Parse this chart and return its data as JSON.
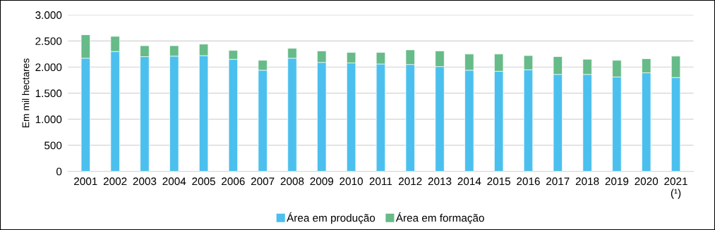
{
  "chart_data": {
    "type": "bar",
    "stacked": true,
    "ylabel": "Em mil hectares",
    "categories": [
      "2001",
      "2002",
      "2003",
      "2004",
      "2005",
      "2006",
      "2007",
      "2008",
      "2009",
      "2010",
      "2011",
      "2012",
      "2013",
      "2014",
      "2015",
      "2016",
      "2017",
      "2018",
      "2019",
      "2020",
      "2021\n(¹)"
    ],
    "series": [
      {
        "name": "Área em produção",
        "color": "#4bc0ee",
        "values": [
          2170,
          2300,
          2200,
          2210,
          2220,
          2150,
          1940,
          2170,
          2090,
          2080,
          2060,
          2050,
          2010,
          1940,
          1920,
          1950,
          1860,
          1860,
          1810,
          1890,
          1800
        ]
      },
      {
        "name": "Área em formação",
        "color": "#66bb88",
        "values": [
          450,
          290,
          210,
          200,
          220,
          170,
          190,
          190,
          220,
          200,
          220,
          280,
          300,
          310,
          330,
          270,
          340,
          290,
          320,
          270,
          410
        ]
      }
    ],
    "ylim": [
      0,
      3000
    ],
    "yticks": [
      0,
      {
        "value": 500,
        "label": "500"
      },
      {
        "value": 1000,
        "label": "1.000"
      },
      {
        "value": 1500,
        "label": "1.500"
      },
      {
        "value": 2000,
        "label": "2.000"
      },
      {
        "value": 2500,
        "label": "2.500"
      },
      {
        "value": 3000,
        "label": "3.000"
      }
    ],
    "grid": "y",
    "legend": "bottom"
  }
}
